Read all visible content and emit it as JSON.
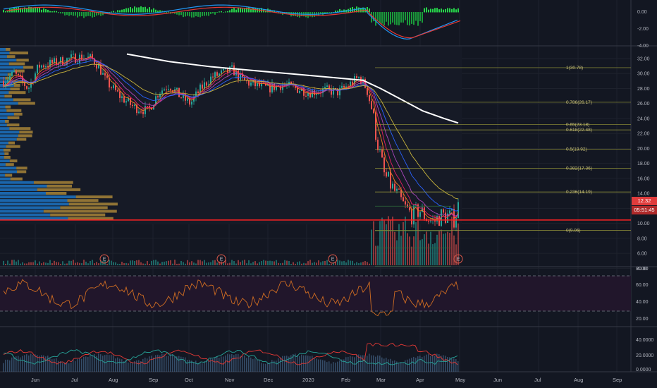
{
  "colors": {
    "background": "#131722",
    "grid": "#1e222d",
    "separator": "#363a45",
    "up": "#26a69a",
    "down": "#ef5350",
    "sma200": "#ffffff",
    "fib": "#9a9a3a",
    "support": "#ff2222",
    "rsi_fill": "#21162b",
    "rsi_line": "#d06d22",
    "vp_sell": "#1e88e5",
    "vp_buy": "#c49a3c"
  },
  "macd_axis": [
    "0.00",
    "-2.00",
    "-4.00"
  ],
  "price_axis": [
    "32.00",
    "30.00",
    "28.00",
    "26.00",
    "24.00",
    "22.00",
    "20.00",
    "18.00",
    "16.00",
    "14.00",
    "12.00",
    "10.00",
    "8.00",
    "6.00",
    "4.00"
  ],
  "rsi_axis": [
    "80.00",
    "60.00",
    "40.00",
    "20.00"
  ],
  "adx_axis": [
    "40.0000",
    "20.0000",
    "0.0000"
  ],
  "x_axis": [
    "Jun",
    "Jul",
    "Aug",
    "Sep",
    "Oct",
    "Nov",
    "Dec",
    "2020",
    "Feb",
    "Mar",
    "Apr",
    "May",
    "Jun",
    "Jul",
    "Aug",
    "Sep"
  ],
  "price_badge": {
    "last": "12.32",
    "countdown": "05:51:45"
  },
  "fib_levels": [
    {
      "label": "1(30.78)",
      "price": 30.78
    },
    {
      "label": "0.786(26.17)",
      "price": 26.17
    },
    {
      "label": "0.65(23.18)",
      "price": 23.18
    },
    {
      "label": "0.618(22.48)",
      "price": 22.48
    },
    {
      "label": "0.5(19.92)",
      "price": 19.92
    },
    {
      "label": "0.382(17.36)",
      "price": 17.36
    },
    {
      "label": "0.236(14.19)",
      "price": 14.19
    },
    {
      "label": "0(9.06)",
      "price": 9.06
    }
  ],
  "earnings_marker": "E"
}
